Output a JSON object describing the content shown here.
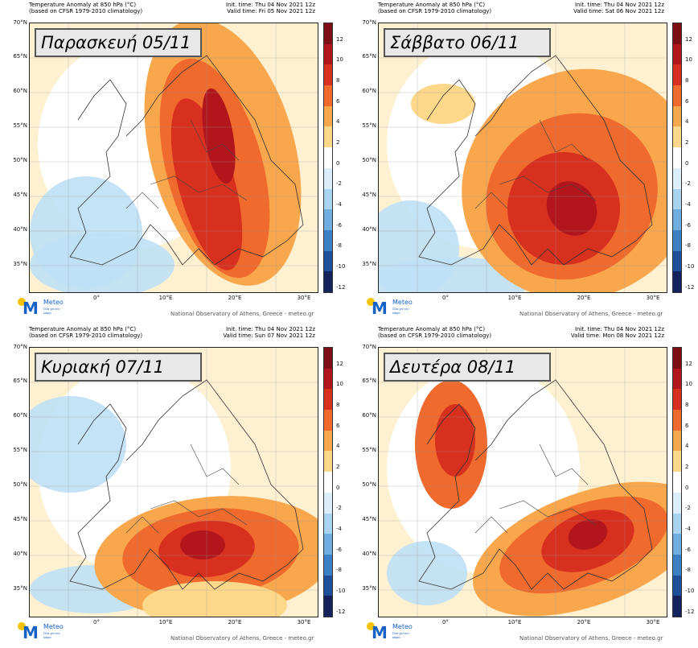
{
  "header": {
    "product_line1": "Temperature Anomaly at 850 hPa (°C)",
    "product_line2": "(based on CFSR 1979-2010 climatology)"
  },
  "panels": [
    {
      "day_label": "Παρασκευή 05/11",
      "init_time": "Init. time: Thu 04 Nov 2021 12z",
      "valid_time": "Valid time: Fri 05 Nov 2021 12z"
    },
    {
      "day_label": "Σάββατο 06/11",
      "init_time": "Init. time: Thu 04 Nov 2021 12z",
      "valid_time": "Valid time: Sat 06 Nov 2021 12z"
    },
    {
      "day_label": "Κυριακή 07/11",
      "init_time": "Init. time: Thu 04 Nov 2021 12z",
      "valid_time": "Valid time: Sun 07 Nov 2021 12z"
    },
    {
      "day_label": "Δευτέρα 08/11",
      "init_time": "Init. time: Thu 04 Nov 2021 12z",
      "valid_time": "Valid time: Mon 08 Nov 2021 12z"
    }
  ],
  "latitude_labels": [
    "70°N",
    "65°N",
    "60°N",
    "55°N",
    "50°N",
    "45°N",
    "40°N",
    "35°N"
  ],
  "longitude_labels": [
    "0°",
    "10°E",
    "20°E",
    "30°E"
  ],
  "colorbar": {
    "levels": [
      "12",
      "10",
      "8",
      "6",
      "4",
      "2",
      "0",
      "-2",
      "-4",
      "-6",
      "-8",
      "-10",
      "-12"
    ],
    "colors": [
      "#7f0e14",
      "#b2161c",
      "#d7301f",
      "#ef6a2c",
      "#f9a74d",
      "#fdd88a",
      "#ffffff",
      "#dbeefa",
      "#a9d4f1",
      "#6faee0",
      "#3b80c4",
      "#1e4f9a",
      "#14235e"
    ]
  },
  "logo": {
    "brand": "Meteo",
    "tagline": "Όλα για τον καιρό",
    "mark": "M"
  },
  "credit": "National Observatory of Athens, Greece - meteo.gr"
}
